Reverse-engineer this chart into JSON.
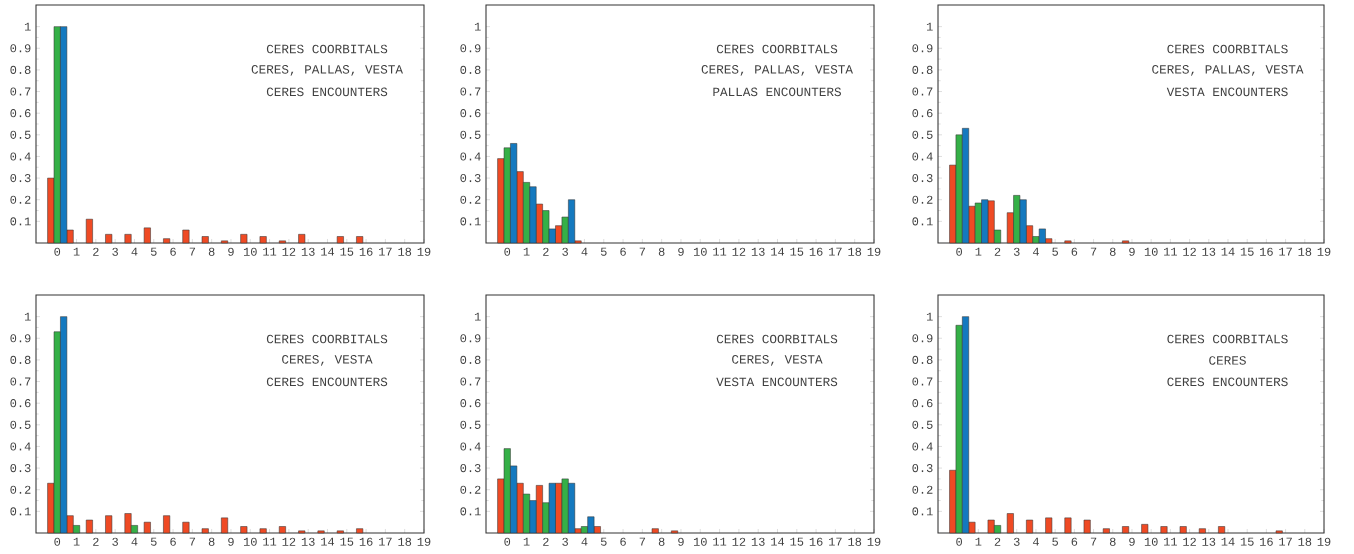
{
  "chart_data": [
    {
      "type": "bar",
      "categories": [
        "0",
        "1",
        "2",
        "3",
        "4",
        "5",
        "6",
        "7",
        "8",
        "9",
        "10",
        "11",
        "12",
        "13",
        "14",
        "15",
        "16",
        "17",
        "18",
        "19"
      ],
      "series": [
        {
          "color": "#ef4a24",
          "values": [
            0.3,
            0.06,
            0.11,
            0.04,
            0.04,
            0.07,
            0.02,
            0.06,
            0.03,
            0.01,
            0.04,
            0.03,
            0.01,
            0.04,
            0,
            0.03,
            0.03,
            0,
            0,
            0
          ]
        },
        {
          "color": "#35b047",
          "values": [
            1.0,
            0,
            0,
            0,
            0,
            0,
            0,
            0,
            0,
            0,
            0,
            0,
            0,
            0,
            0,
            0,
            0,
            0,
            0,
            0
          ]
        },
        {
          "color": "#1479bf",
          "values": [
            1.0,
            0,
            0,
            0,
            0,
            0,
            0,
            0,
            0,
            0,
            0,
            0,
            0,
            0,
            0,
            0,
            0,
            0,
            0,
            0
          ]
        }
      ],
      "ylim": [
        0,
        1.1
      ],
      "yticks": [
        0.1,
        0.2,
        0.3,
        0.4,
        0.5,
        0.6,
        0.7,
        0.8,
        0.9,
        1
      ],
      "annotations": [
        "CERES COORBITALS",
        "CERES, PALLAS, VESTA",
        "CERES ENCOUNTERS"
      ]
    },
    {
      "type": "bar",
      "categories": [
        "0",
        "1",
        "2",
        "3",
        "4",
        "5",
        "6",
        "7",
        "8",
        "9",
        "10",
        "11",
        "12",
        "13",
        "14",
        "15",
        "16",
        "17",
        "18",
        "19"
      ],
      "series": [
        {
          "color": "#ef4a24",
          "values": [
            0.39,
            0.33,
            0.18,
            0.08,
            0.01,
            0,
            0,
            0,
            0,
            0,
            0,
            0,
            0,
            0,
            0,
            0,
            0,
            0,
            0,
            0
          ]
        },
        {
          "color": "#35b047",
          "values": [
            0.44,
            0.28,
            0.15,
            0.12,
            0,
            0,
            0,
            0,
            0,
            0,
            0,
            0,
            0,
            0,
            0,
            0,
            0,
            0,
            0,
            0
          ]
        },
        {
          "color": "#1479bf",
          "values": [
            0.46,
            0.26,
            0.065,
            0.2,
            0,
            0,
            0,
            0,
            0,
            0,
            0,
            0,
            0,
            0,
            0,
            0,
            0,
            0,
            0,
            0
          ]
        }
      ],
      "ylim": [
        0,
        1.1
      ],
      "yticks": [
        0.1,
        0.2,
        0.3,
        0.4,
        0.5,
        0.6,
        0.7,
        0.8,
        0.9,
        1
      ],
      "annotations": [
        "CERES COORBITALS",
        "CERES, PALLAS, VESTA",
        "PALLAS ENCOUNTERS"
      ]
    },
    {
      "type": "bar",
      "categories": [
        "0",
        "1",
        "2",
        "3",
        "4",
        "5",
        "6",
        "7",
        "8",
        "9",
        "10",
        "11",
        "12",
        "13",
        "14",
        "15",
        "16",
        "17",
        "18",
        "19"
      ],
      "series": [
        {
          "color": "#ef4a24",
          "values": [
            0.36,
            0.17,
            0.195,
            0.14,
            0.08,
            0.02,
            0.01,
            0,
            0,
            0.01,
            0,
            0,
            0,
            0,
            0,
            0,
            0,
            0,
            0,
            0
          ]
        },
        {
          "color": "#35b047",
          "values": [
            0.5,
            0.185,
            0.06,
            0.22,
            0.03,
            0,
            0,
            0,
            0,
            0,
            0,
            0,
            0,
            0,
            0,
            0,
            0,
            0,
            0,
            0
          ]
        },
        {
          "color": "#1479bf",
          "values": [
            0.53,
            0.2,
            0,
            0.2,
            0.065,
            0,
            0,
            0,
            0,
            0,
            0,
            0,
            0,
            0,
            0,
            0,
            0,
            0,
            0,
            0
          ]
        }
      ],
      "ylim": [
        0,
        1.1
      ],
      "yticks": [
        0.1,
        0.2,
        0.3,
        0.4,
        0.5,
        0.6,
        0.7,
        0.8,
        0.9,
        1
      ],
      "annotations": [
        "CERES COORBITALS",
        "CERES, PALLAS, VESTA",
        "VESTA ENCOUNTERS"
      ]
    },
    {
      "type": "bar",
      "categories": [
        "0",
        "1",
        "2",
        "3",
        "4",
        "5",
        "6",
        "7",
        "8",
        "9",
        "10",
        "11",
        "12",
        "13",
        "14",
        "15",
        "16",
        "17",
        "18",
        "19"
      ],
      "series": [
        {
          "color": "#ef4a24",
          "values": [
            0.23,
            0.08,
            0.06,
            0.08,
            0.09,
            0.05,
            0.08,
            0.05,
            0.02,
            0.07,
            0.03,
            0.02,
            0.03,
            0.01,
            0.01,
            0.01,
            0.02,
            0,
            0,
            0
          ]
        },
        {
          "color": "#35b047",
          "values": [
            0.93,
            0.035,
            0,
            0,
            0.035,
            0,
            0,
            0,
            0,
            0,
            0,
            0,
            0,
            0,
            0,
            0,
            0,
            0,
            0,
            0
          ]
        },
        {
          "color": "#1479bf",
          "values": [
            1.0,
            0,
            0,
            0,
            0,
            0,
            0,
            0,
            0,
            0,
            0,
            0,
            0,
            0,
            0,
            0,
            0,
            0,
            0,
            0
          ]
        }
      ],
      "ylim": [
        0,
        1.1
      ],
      "yticks": [
        0.1,
        0.2,
        0.3,
        0.4,
        0.5,
        0.6,
        0.7,
        0.8,
        0.9,
        1
      ],
      "annotations": [
        "CERES COORBITALS",
        "CERES, VESTA",
        "CERES ENCOUNTERS"
      ]
    },
    {
      "type": "bar",
      "categories": [
        "0",
        "1",
        "2",
        "3",
        "4",
        "5",
        "6",
        "7",
        "8",
        "9",
        "10",
        "11",
        "12",
        "13",
        "14",
        "15",
        "16",
        "17",
        "18",
        "19"
      ],
      "series": [
        {
          "color": "#ef4a24",
          "values": [
            0.25,
            0.23,
            0.22,
            0.23,
            0.02,
            0.03,
            0,
            0,
            0.02,
            0.01,
            0,
            0,
            0,
            0,
            0,
            0,
            0,
            0,
            0,
            0
          ]
        },
        {
          "color": "#35b047",
          "values": [
            0.39,
            0.18,
            0.14,
            0.25,
            0.03,
            0,
            0,
            0,
            0,
            0,
            0,
            0,
            0,
            0,
            0,
            0,
            0,
            0,
            0,
            0
          ]
        },
        {
          "color": "#1479bf",
          "values": [
            0.31,
            0.15,
            0.23,
            0.23,
            0.075,
            0,
            0,
            0,
            0,
            0,
            0,
            0,
            0,
            0,
            0,
            0,
            0,
            0,
            0,
            0
          ]
        }
      ],
      "ylim": [
        0,
        1.1
      ],
      "yticks": [
        0.1,
        0.2,
        0.3,
        0.4,
        0.5,
        0.6,
        0.7,
        0.8,
        0.9,
        1
      ],
      "annotations": [
        "CERES COORBITALS",
        "CERES, VESTA",
        "VESTA ENCOUNTERS"
      ]
    },
    {
      "type": "bar",
      "categories": [
        "0",
        "1",
        "2",
        "3",
        "4",
        "5",
        "6",
        "7",
        "8",
        "9",
        "10",
        "11",
        "12",
        "13",
        "14",
        "15",
        "16",
        "17",
        "18",
        "19"
      ],
      "series": [
        {
          "color": "#ef4a24",
          "values": [
            0.29,
            0.05,
            0.06,
            0.09,
            0.06,
            0.07,
            0.07,
            0.06,
            0.02,
            0.03,
            0.04,
            0.03,
            0.03,
            0.02,
            0.03,
            0,
            0,
            0.01,
            0,
            0
          ]
        },
        {
          "color": "#35b047",
          "values": [
            0.96,
            0,
            0.035,
            0,
            0,
            0,
            0,
            0,
            0,
            0,
            0,
            0,
            0,
            0,
            0,
            0,
            0,
            0,
            0,
            0
          ]
        },
        {
          "color": "#1479bf",
          "values": [
            1.0,
            0,
            0,
            0,
            0,
            0,
            0,
            0,
            0,
            0,
            0,
            0,
            0,
            0,
            0,
            0,
            0,
            0,
            0,
            0
          ]
        }
      ],
      "ylim": [
        0,
        1.1
      ],
      "yticks": [
        0.1,
        0.2,
        0.3,
        0.4,
        0.5,
        0.6,
        0.7,
        0.8,
        0.9,
        1
      ],
      "annotations": [
        "CERES COORBITALS",
        "CERES",
        "CERES ENCOUNTERS"
      ]
    }
  ]
}
